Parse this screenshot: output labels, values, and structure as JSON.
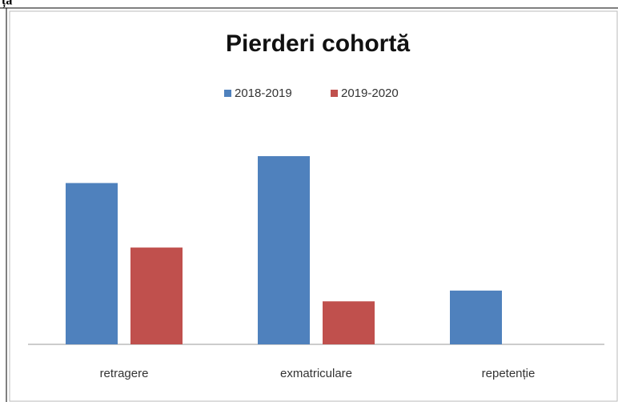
{
  "header": "ța",
  "chart_data": {
    "type": "bar",
    "title": "Pierderi cohortă",
    "categories": [
      "retragere",
      "exmatriculare",
      "repetenție"
    ],
    "series": [
      {
        "name": "2018-2019",
        "color": "#4f81bd",
        "values": [
          30,
          35,
          10
        ]
      },
      {
        "name": "2019-2020",
        "color": "#c0504d",
        "values": [
          18,
          8,
          0
        ]
      }
    ],
    "legend": "top"
  }
}
